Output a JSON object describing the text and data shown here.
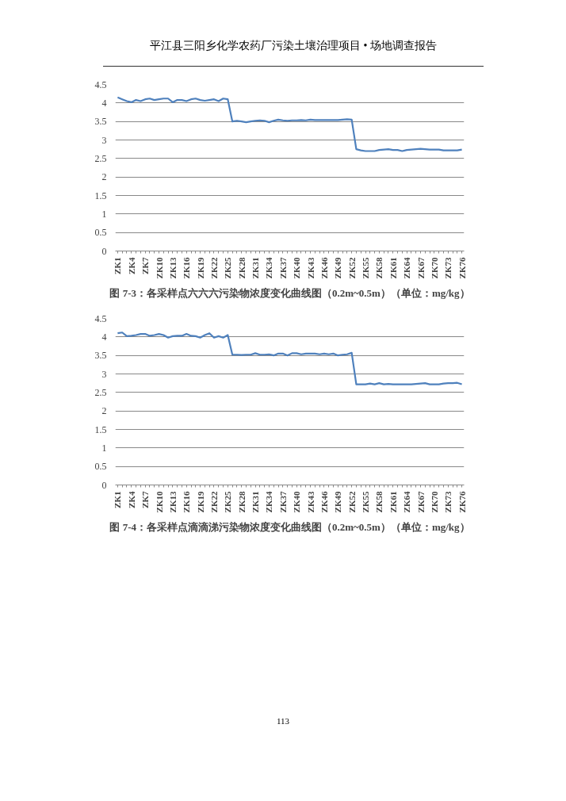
{
  "chart_data": [
    {
      "type": "line",
      "title": "图 7-3：各采样点六六六污染物浓度变化曲线图（0.2m~0.5m）（单位：mg/kg）",
      "annotations": [
        "平江县三阳乡化学农药厂污染土壤治理项目 • 场地调查报告"
      ],
      "categories": [
        "ZK1",
        null,
        null,
        "ZK4",
        null,
        null,
        "ZK7",
        null,
        null,
        "ZK10",
        null,
        null,
        "ZK13",
        null,
        null,
        "ZK16",
        null,
        null,
        "ZK19",
        null,
        null,
        "ZK22",
        null,
        null,
        "ZK25",
        null,
        null,
        "ZK28",
        null,
        null,
        "ZK31",
        null,
        null,
        "ZK34",
        null,
        null,
        "ZK37",
        null,
        null,
        "ZK40",
        null,
        null,
        "ZK43",
        null,
        null,
        "ZK46",
        null,
        null,
        "ZK49",
        null,
        null,
        "ZK52",
        null,
        null,
        "ZK55",
        null,
        null,
        "ZK58",
        null,
        null,
        "ZK61",
        null,
        null,
        "ZK64",
        null,
        null,
        "ZK67",
        null,
        null,
        "ZK70",
        null,
        null,
        "ZK73",
        null,
        null,
        "ZK76"
      ],
      "series": [
        {
          "color": "#4f81bd",
          "values": [
            4.15,
            4.1,
            4.05,
            4.02,
            4.08,
            4.05,
            4.1,
            4.12,
            4.08,
            4.1,
            4.12,
            4.12,
            4.02,
            4.08,
            4.08,
            4.05,
            4.1,
            4.12,
            4.08,
            4.06,
            4.08,
            4.1,
            4.05,
            4.12,
            4.1,
            3.5,
            3.52,
            3.5,
            3.48,
            3.5,
            3.52,
            3.53,
            3.52,
            3.48,
            3.52,
            3.55,
            3.53,
            3.52,
            3.53,
            3.53,
            3.54,
            3.53,
            3.55,
            3.54,
            3.54,
            3.54,
            3.54,
            3.54,
            3.54,
            3.55,
            3.56,
            3.55,
            2.75,
            2.72,
            2.7,
            2.7,
            2.7,
            2.73,
            2.74,
            2.75,
            2.73,
            2.73,
            2.7,
            2.73,
            2.74,
            2.75,
            2.76,
            2.75,
            2.74,
            2.74,
            2.74,
            2.72,
            2.72,
            2.72,
            2.72,
            2.74
          ]
        }
      ],
      "ylim": [
        0,
        4.5
      ],
      "yticks": [
        0,
        0.5,
        1,
        1.5,
        2,
        2.5,
        3,
        3.5,
        4,
        4.5
      ],
      "grid": "y",
      "marker": "none",
      "line_style": "solid"
    },
    {
      "type": "line",
      "title": "图 7-4：各采样点滴滴涕污染物浓度变化曲线图（0.2m~0.5m）（单位：mg/kg）",
      "annotations": [
        "113"
      ],
      "categories": [
        "ZK1",
        null,
        null,
        "ZK4",
        null,
        null,
        "ZK7",
        null,
        null,
        "ZK10",
        null,
        null,
        "ZK13",
        null,
        null,
        "ZK16",
        null,
        null,
        "ZK19",
        null,
        null,
        "ZK22",
        null,
        null,
        "ZK25",
        null,
        null,
        "ZK28",
        null,
        null,
        "ZK31",
        null,
        null,
        "ZK34",
        null,
        null,
        "ZK37",
        null,
        null,
        "ZK40",
        null,
        null,
        "ZK43",
        null,
        null,
        "ZK46",
        null,
        null,
        "ZK49",
        null,
        null,
        "ZK52",
        null,
        null,
        "ZK55",
        null,
        null,
        "ZK58",
        null,
        null,
        "ZK61",
        null,
        null,
        "ZK64",
        null,
        null,
        "ZK67",
        null,
        null,
        "ZK70",
        null,
        null,
        "ZK73",
        null,
        null,
        "ZK76"
      ],
      "series": [
        {
          "color": "#4f81bd",
          "values": [
            4.1,
            4.12,
            4.02,
            4.03,
            4.05,
            4.08,
            4.08,
            4.03,
            4.05,
            4.08,
            4.05,
            3.98,
            4.02,
            4.03,
            4.03,
            4.08,
            4.03,
            4.02,
            3.98,
            4.05,
            4.1,
            3.98,
            4.02,
            3.98,
            4.05,
            3.52,
            3.52,
            3.51,
            3.52,
            3.52,
            3.56,
            3.52,
            3.52,
            3.53,
            3.5,
            3.55,
            3.55,
            3.5,
            3.56,
            3.56,
            3.53,
            3.55,
            3.55,
            3.55,
            3.53,
            3.55,
            3.53,
            3.55,
            3.5,
            3.52,
            3.53,
            3.57,
            2.72,
            2.72,
            2.72,
            2.74,
            2.72,
            2.75,
            2.72,
            2.73,
            2.72,
            2.72,
            2.72,
            2.72,
            2.72,
            2.73,
            2.74,
            2.75,
            2.72,
            2.72,
            2.72,
            2.74,
            2.75,
            2.75,
            2.76,
            2.72
          ]
        }
      ],
      "ylim": [
        0,
        4.5
      ],
      "yticks": [
        0,
        0.5,
        1,
        1.5,
        2,
        2.5,
        3,
        3.5,
        4,
        4.5
      ],
      "grid": "y",
      "marker": "none",
      "line_style": "solid"
    }
  ]
}
